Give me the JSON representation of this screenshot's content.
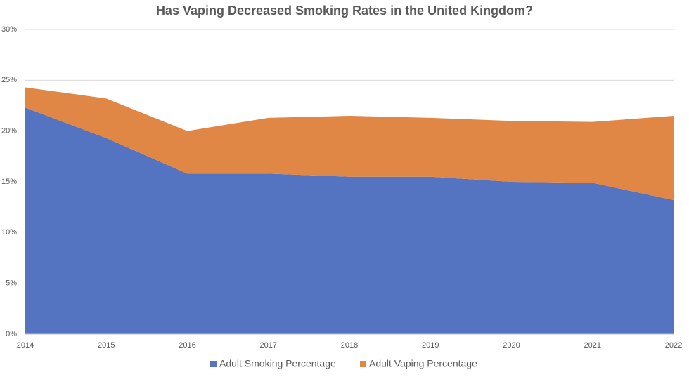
{
  "chart_data": {
    "type": "stacked_area",
    "title": "Has Vaping Decreased Smoking Rates in the United Kingdom?",
    "categories": [
      "2014",
      "2015",
      "2016",
      "2017",
      "2018",
      "2019",
      "2020",
      "2021",
      "2022"
    ],
    "series": [
      {
        "name": "Adult Smoking Percentage",
        "color": "#5473c0",
        "values": [
          22.3,
          19.3,
          15.8,
          15.8,
          15.5,
          15.5,
          15.0,
          14.9,
          13.2
        ]
      },
      {
        "name": "Adult Vaping Percentage",
        "color": "#e08745",
        "values": [
          2.0,
          3.9,
          4.2,
          5.5,
          6.0,
          5.8,
          6.0,
          6.0,
          8.3
        ]
      }
    ],
    "ylim": [
      0,
      30
    ],
    "yticks": [
      {
        "value": 0,
        "label": "0%"
      },
      {
        "value": 5,
        "label": "5%"
      },
      {
        "value": 10,
        "label": "10%"
      },
      {
        "value": 15,
        "label": "15%"
      },
      {
        "value": 20,
        "label": "20%"
      },
      {
        "value": 25,
        "label": "25%"
      },
      {
        "value": 30,
        "label": "30%"
      }
    ],
    "grid": true,
    "legend": "bottom"
  }
}
